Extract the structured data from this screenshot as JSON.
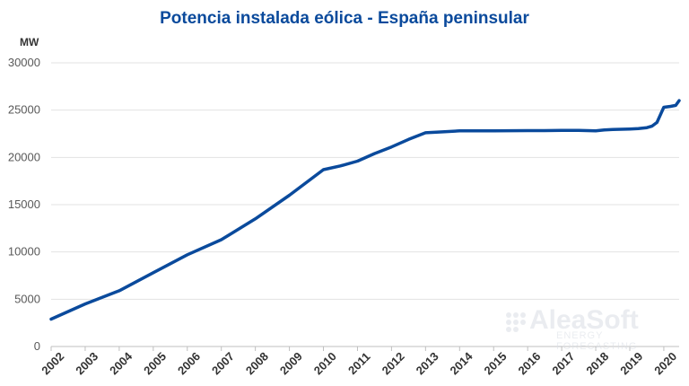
{
  "chart_data": {
    "type": "line",
    "title": "Potencia instalada eólica - España peninsular",
    "ylabel": "MW",
    "xlabel": "",
    "ylim": [
      0,
      30000
    ],
    "xlim": [
      2002,
      2020.45
    ],
    "yticks": [
      0,
      5000,
      10000,
      15000,
      20000,
      25000,
      30000
    ],
    "xticks": [
      "2002",
      "2003",
      "2004",
      "2005",
      "2006",
      "2007",
      "2008",
      "2009",
      "2010",
      "2011",
      "2012",
      "2013",
      "2014",
      "2015",
      "2016",
      "2017",
      "2018",
      "2019",
      "2020"
    ],
    "grid": "horizontal",
    "color": "#0a4a9c",
    "series": [
      {
        "x": [
          2002.0,
          2003.0,
          2004.0,
          2005.0,
          2006.0,
          2007.0,
          2008.0,
          2009.0,
          2010.0,
          2010.5,
          2011.0,
          2011.5,
          2012.0,
          2012.5,
          2013.0,
          2013.5,
          2014.0,
          2014.5,
          2015.0,
          2015.5,
          2016.0,
          2016.5,
          2017.0,
          2017.5,
          2018.0,
          2018.25,
          2018.5,
          2019.0,
          2019.25,
          2019.5,
          2019.65,
          2019.8,
          2020.0,
          2020.2,
          2020.35,
          2020.45
        ],
        "y": [
          2900,
          4500,
          5900,
          7800,
          9700,
          11300,
          13500,
          16000,
          18700,
          19100,
          19600,
          20400,
          21100,
          21900,
          22600,
          22700,
          22800,
          22800,
          22800,
          22820,
          22830,
          22830,
          22850,
          22850,
          22800,
          22900,
          22950,
          23000,
          23050,
          23150,
          23300,
          23700,
          25300,
          25400,
          25500,
          26000
        ]
      }
    ]
  },
  "watermark": {
    "name": "AleaSoft",
    "subtitle": "ENERGY FORECASTING"
  }
}
